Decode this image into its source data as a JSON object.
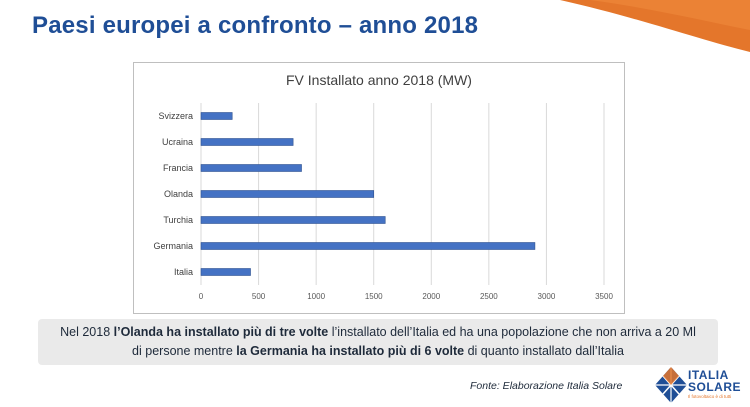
{
  "title": "Paesi europei a confronto – anno 2018",
  "chart_data": {
    "type": "bar",
    "orientation": "horizontal",
    "title": "FV Installato anno 2018 (MW)",
    "categories": [
      "Svizzera",
      "Ucraina",
      "Francia",
      "Olanda",
      "Turchia",
      "Germania",
      "Italia"
    ],
    "values": [
      271,
      800,
      873,
      1500,
      1600,
      2900,
      430
    ],
    "xlim": [
      0,
      3500
    ],
    "xticks": [
      0,
      500,
      1000,
      1500,
      2000,
      2500,
      3000,
      3500
    ],
    "grid": true,
    "bar_color": "#4472c4"
  },
  "caption": {
    "line1_pre": "Nel 2018 ",
    "line1_bold": "l’Olanda ha installato più di tre volte",
    "line1_post": " l’installato dell’Italia ed ha una popolazione che non arriva a 20 Ml",
    "line2_pre": "di persone mentre ",
    "line2_bold": "la Germania ha installato più di 6 volte",
    "line2_post": " di quanto installato dall’Italia"
  },
  "source": "Fonte: Elaborazione  Italia Solare",
  "logo": {
    "line1": "ITALIA",
    "line2": "SOLARE",
    "tagline": "Il fotovoltaico è di tutti"
  },
  "colors": {
    "title": "#1f4e96",
    "accent": "#e4762b",
    "bar": "#4472c4"
  }
}
